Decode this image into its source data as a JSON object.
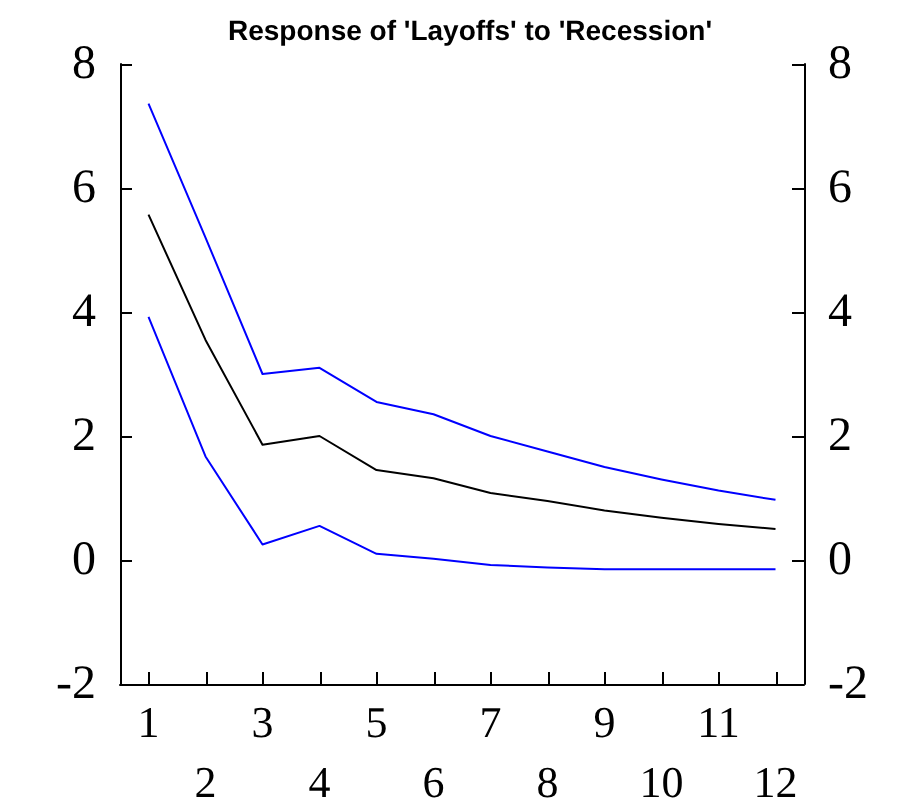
{
  "chart_data": {
    "type": "line",
    "title": "Response of 'Layoffs' to 'Recession'",
    "categories": [
      "1",
      "2",
      "3",
      "4",
      "5",
      "6",
      "7",
      "8",
      "9",
      "10",
      "11",
      "12"
    ],
    "series": [
      {
        "color": "#0000ff",
        "values": [
          7.36,
          5.2,
          3.0,
          3.1,
          2.55,
          2.35,
          2.0,
          1.75,
          1.5,
          1.3,
          1.12,
          0.97
        ]
      },
      {
        "color": "#000000",
        "values": [
          5.57,
          3.55,
          1.86,
          2.0,
          1.45,
          1.32,
          1.08,
          0.95,
          0.8,
          0.68,
          0.58,
          0.5
        ]
      },
      {
        "color": "#0000ff",
        "values": [
          3.92,
          1.67,
          0.25,
          0.55,
          0.1,
          0.02,
          -0.08,
          -0.12,
          -0.15,
          -0.15,
          -0.15,
          -0.15
        ]
      }
    ],
    "ylim": [
      -2,
      8
    ],
    "yticks": [
      -2,
      0,
      2,
      4,
      6,
      8
    ],
    "y2lim": [
      -2,
      8
    ],
    "y2ticks": [
      -2,
      0,
      2,
      4,
      6,
      8
    ]
  }
}
